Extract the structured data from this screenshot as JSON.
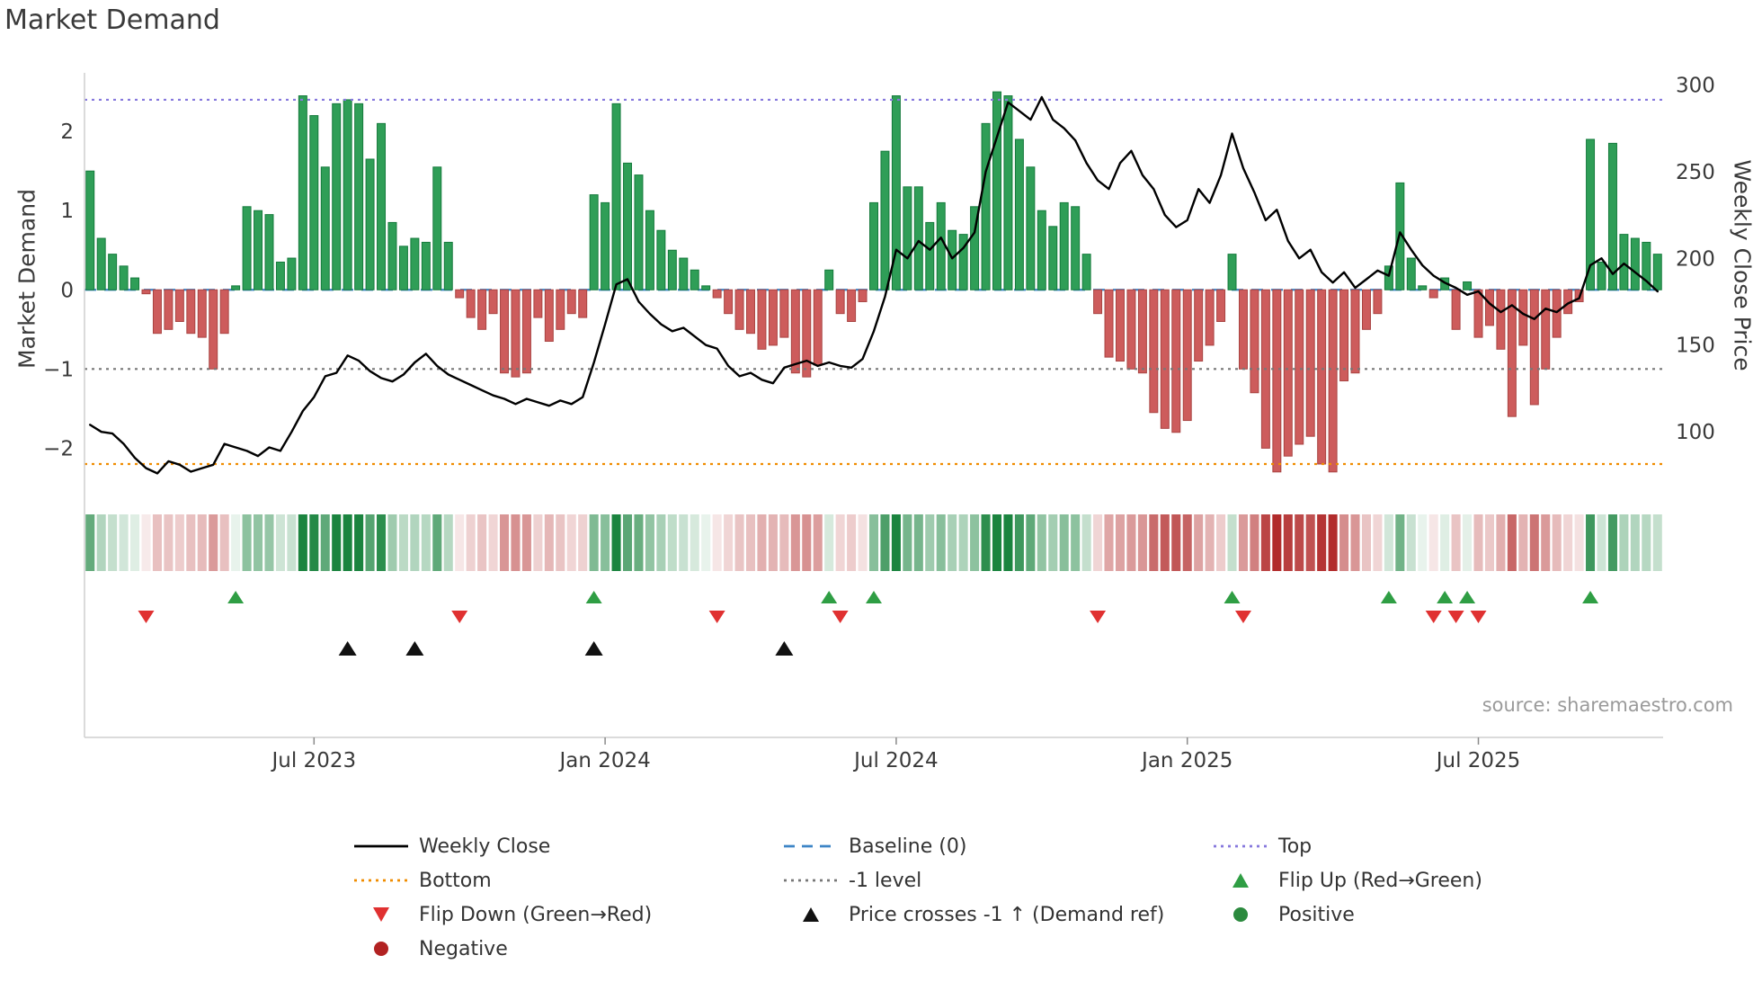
{
  "title": "Market Demand",
  "source": "source: sharemaestro.com",
  "colors": {
    "bar_positive": "#2f9e57",
    "bar_positive_edge": "#157a3c",
    "bar_negative": "#cd5c5c",
    "bar_negative_edge": "#a94442",
    "price_line": "#000000",
    "baseline": "#3d85c6",
    "top_line": "#8678dd",
    "bottom_line": "#f08c00",
    "minus_one_line": "#777777",
    "flip_up": "#2f9e44",
    "flip_down": "#e03131",
    "price_cross": "#111111",
    "positive_dot": "#2b8a3e",
    "negative_dot": "#b22222"
  },
  "chart_data": {
    "type": "bar",
    "title": "Market Demand",
    "ylabel_left": "Market Demand",
    "ylabel_right": "Weekly Close Price",
    "x_unit": "week",
    "x_tick_labels": [
      "Jul 2023",
      "Jan 2024",
      "Jul 2024",
      "Jan 2025",
      "Jul 2025"
    ],
    "x_tick_weeks": [
      20,
      46,
      72,
      98,
      124
    ],
    "left_ticks": [
      2,
      1,
      0,
      -1,
      -2
    ],
    "right_ticks": [
      300,
      250,
      200,
      150,
      100
    ],
    "ylim_left": [
      -2.45,
      2.74
    ],
    "ylim_right": [
      70,
      307
    ],
    "grid": false,
    "legend_position": "bottom",
    "reference_lines": {
      "top": 2.4,
      "bottom": -2.2,
      "minus_one": -1,
      "baseline": 0
    },
    "heatmap_source": "Market Demand values (green positive, red negative, intensity = magnitude)",
    "series": [
      {
        "name": "Market Demand",
        "type": "bar",
        "axis": "left",
        "values": [
          1.5,
          0.65,
          0.45,
          0.3,
          0.15,
          -0.05,
          -0.55,
          -0.5,
          -0.4,
          -0.55,
          -0.6,
          -1.0,
          -0.55,
          0.05,
          1.05,
          1.0,
          0.95,
          0.35,
          0.4,
          2.45,
          2.2,
          1.55,
          2.35,
          2.4,
          2.35,
          1.65,
          2.1,
          0.85,
          0.55,
          0.65,
          0.6,
          1.55,
          0.6,
          -0.1,
          -0.35,
          -0.5,
          -0.3,
          -1.05,
          -1.1,
          -1.05,
          -0.35,
          -0.65,
          -0.5,
          -0.3,
          -0.35,
          1.2,
          1.1,
          2.35,
          1.6,
          1.45,
          1.0,
          0.75,
          0.5,
          0.4,
          0.25,
          0.05,
          -0.1,
          -0.3,
          -0.5,
          -0.55,
          -0.75,
          -0.7,
          -0.6,
          -1.05,
          -1.1,
          -0.95,
          0.25,
          -0.3,
          -0.4,
          -0.15,
          1.1,
          1.75,
          2.45,
          1.3,
          1.3,
          0.85,
          1.1,
          0.75,
          0.7,
          1.05,
          2.1,
          2.5,
          2.45,
          1.9,
          1.55,
          1.0,
          0.8,
          1.1,
          1.05,
          0.45,
          -0.3,
          -0.85,
          -0.9,
          -1.0,
          -1.05,
          -1.55,
          -1.75,
          -1.8,
          -1.65,
          -0.9,
          -0.7,
          -0.4,
          0.45,
          -1.0,
          -1.3,
          -2.0,
          -2.3,
          -2.1,
          -1.95,
          -1.85,
          -2.2,
          -2.3,
          -1.15,
          -1.05,
          -0.5,
          -0.3,
          0.3,
          1.35,
          0.4,
          0.05,
          -0.1,
          0.15,
          -0.5,
          0.1,
          -0.6,
          -0.45,
          -0.75,
          -1.6,
          -0.7,
          -1.45,
          -1.0,
          -0.6,
          -0.3,
          -0.15,
          1.9,
          0.35,
          1.85,
          0.7,
          0.65,
          0.6,
          0.45
        ]
      },
      {
        "name": "Weekly Close",
        "type": "line",
        "axis": "right",
        "values": [
          104,
          100,
          99,
          93,
          85,
          79,
          76,
          83,
          81,
          77,
          79,
          81,
          93,
          91,
          89,
          86,
          91,
          89,
          100,
          112,
          120,
          132,
          134,
          144,
          141,
          135,
          131,
          129,
          133,
          140,
          145,
          138,
          133,
          130,
          127,
          124,
          121,
          119,
          116,
          119,
          117,
          115,
          118,
          116,
          120,
          140,
          162,
          185,
          188,
          175,
          168,
          162,
          158,
          160,
          155,
          150,
          148,
          138,
          132,
          134,
          130,
          128,
          137,
          139,
          141,
          138,
          140,
          138,
          137,
          142,
          158,
          178,
          205,
          200,
          210,
          205,
          212,
          200,
          206,
          215,
          250,
          270,
          290,
          285,
          280,
          293,
          280,
          275,
          268,
          255,
          245,
          240,
          255,
          262,
          248,
          240,
          225,
          218,
          222,
          240,
          232,
          248,
          272,
          252,
          238,
          222,
          228,
          210,
          200,
          205,
          192,
          186,
          192,
          183,
          188,
          193,
          190,
          215,
          205,
          196,
          190,
          186,
          183,
          179,
          181,
          174,
          169,
          173,
          168,
          165,
          171,
          169,
          174,
          177,
          196,
          200,
          191,
          197,
          192,
          187,
          181
        ]
      }
    ],
    "markers": {
      "flip_up_weeks": [
        13,
        45,
        66,
        70,
        102,
        116,
        121,
        123,
        134
      ],
      "flip_down_weeks": [
        5,
        33,
        56,
        67,
        90,
        103,
        120,
        122,
        124
      ],
      "price_cross_weeks": [
        23,
        29,
        45,
        62
      ]
    }
  },
  "legend": {
    "columns": [
      {
        "items": [
          {
            "label": "Weekly Close",
            "marker": "line-black"
          },
          {
            "label": "Bottom",
            "marker": "dotted-orange"
          },
          {
            "label": "Flip Down (Green→Red)",
            "marker": "tri-down-red"
          },
          {
            "label": "Negative",
            "marker": "dot-darkred"
          }
        ]
      },
      {
        "items": [
          {
            "label": "Baseline (0)",
            "marker": "dashed-blue"
          },
          {
            "label": "-1 level",
            "marker": "dotted-gray"
          },
          {
            "label": "Price crosses -1 ↑ (Demand ref)",
            "marker": "tri-up-black"
          }
        ]
      },
      {
        "items": [
          {
            "label": "Top",
            "marker": "dotted-purple"
          },
          {
            "label": "Flip Up (Red→Green)",
            "marker": "tri-up-green"
          },
          {
            "label": "Positive",
            "marker": "dot-green"
          }
        ]
      }
    ]
  }
}
